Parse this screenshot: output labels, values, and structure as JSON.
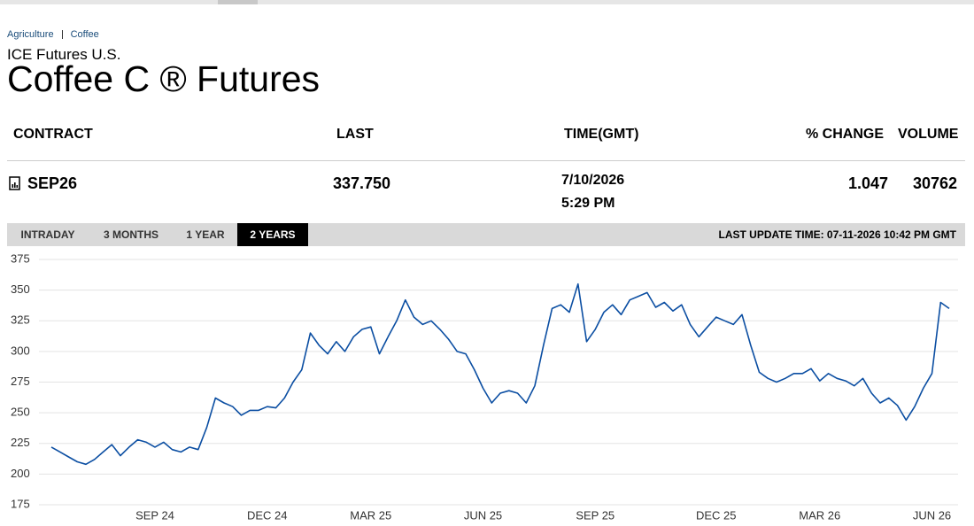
{
  "breadcrumb": [
    "Agriculture",
    "Coffee"
  ],
  "header": {
    "subtitle": "ICE Futures U.S.",
    "title": "Coffee C ® Futures"
  },
  "table": {
    "columns": [
      "CONTRACT",
      "LAST",
      "TIME(GMT)",
      "% CHANGE",
      "VOLUME"
    ],
    "row": {
      "contract": "SEP26",
      "last": "337.750",
      "date": "7/10/2026",
      "time": "5:29 PM",
      "change": "1.047",
      "volume": "30762"
    }
  },
  "tabs": [
    "INTRADAY",
    "3 MONTHS",
    "1 YEAR",
    "2 YEARS"
  ],
  "last_update": "LAST UPDATE TIME: 07-11-2026 10:42 PM GMT",
  "chart_data": {
    "type": "line",
    "color": "#0b4ea2",
    "grid": true,
    "ylim": [
      175,
      375
    ],
    "yticks": [
      175,
      200,
      225,
      250,
      275,
      300,
      325,
      350,
      375
    ],
    "categories": [
      null,
      null,
      null,
      null,
      null,
      null,
      null,
      null,
      null,
      null,
      null,
      null,
      "SEP 24",
      null,
      null,
      null,
      null,
      null,
      null,
      null,
      null,
      null,
      null,
      null,
      null,
      "DEC 24",
      null,
      null,
      null,
      null,
      null,
      null,
      null,
      null,
      null,
      null,
      null,
      "MAR 25",
      null,
      null,
      null,
      null,
      null,
      null,
      null,
      null,
      null,
      null,
      null,
      null,
      "JUN 25",
      null,
      null,
      null,
      null,
      null,
      null,
      null,
      null,
      null,
      null,
      null,
      null,
      "SEP 25",
      null,
      null,
      null,
      null,
      null,
      null,
      null,
      null,
      null,
      null,
      null,
      null,
      null,
      "DEC 25",
      null,
      null,
      null,
      null,
      null,
      null,
      null,
      null,
      null,
      null,
      null,
      "MAR 26",
      null,
      null,
      null,
      null,
      null,
      null,
      null,
      null,
      null,
      null,
      null,
      null,
      "JUN 26",
      null,
      null
    ],
    "values": [
      222,
      218,
      214,
      210,
      208,
      212,
      218,
      224,
      215,
      222,
      228,
      226,
      222,
      226,
      220,
      218,
      222,
      220,
      238,
      262,
      258,
      255,
      248,
      252,
      252,
      255,
      254,
      262,
      275,
      285,
      315,
      305,
      298,
      308,
      300,
      312,
      318,
      320,
      298,
      312,
      325,
      342,
      328,
      322,
      325,
      318,
      310,
      300,
      298,
      285,
      270,
      258,
      266,
      268,
      266,
      258,
      272,
      305,
      335,
      338,
      332,
      355,
      308,
      318,
      332,
      338,
      330,
      342,
      345,
      348,
      336,
      340,
      333,
      338,
      322,
      312,
      320,
      328,
      325,
      322,
      330,
      305,
      283,
      278,
      275,
      278,
      282,
      282,
      286,
      276,
      282,
      278,
      276,
      272,
      278,
      266,
      258,
      262,
      256,
      244,
      255,
      270,
      282,
      340,
      335
    ]
  }
}
